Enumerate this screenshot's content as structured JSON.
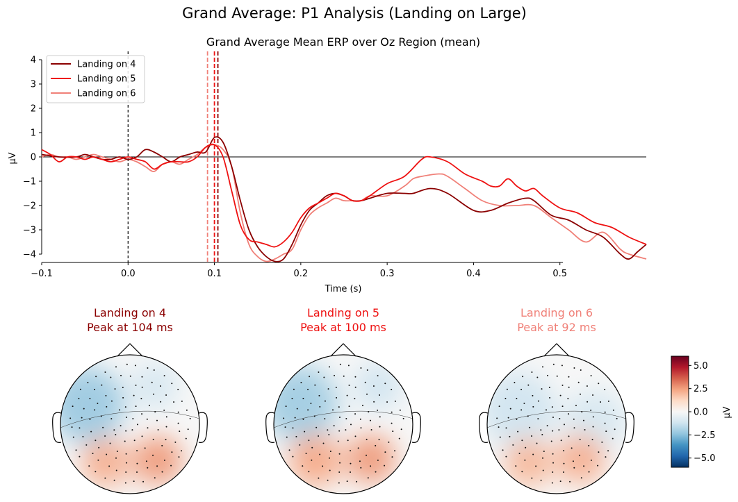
{
  "figure": {
    "suptitle": "Grand Average: P1 Analysis (Landing on Large)"
  },
  "colors": {
    "landing4": "#8b0000",
    "landing5": "#ee1111",
    "landing6": "#f08078",
    "zero_line": "#000000"
  },
  "chart_data": [
    {
      "type": "line",
      "title": "Grand Average Mean ERP over Oz Region (mean)",
      "xlabel": "Time (s)",
      "ylabel": "µV",
      "xlim": [
        -0.1,
        0.6
      ],
      "ylim": [
        -4.3,
        4.3
      ],
      "x_ticks": [
        -0.1,
        0.0,
        0.1,
        0.2,
        0.3,
        0.4,
        0.5
      ],
      "x_tick_labels": [
        "−0.1",
        "0.0",
        "0.1",
        "0.2",
        "0.3",
        "0.4",
        "0.5"
      ],
      "y_ticks": [
        -4,
        -3,
        -2,
        -1,
        0,
        1,
        2,
        3,
        4
      ],
      "y_tick_labels": [
        "−4",
        "−3",
        "−2",
        "−1",
        "0",
        "1",
        "2",
        "3",
        "4"
      ],
      "legend_position": "upper-left",
      "series": [
        {
          "name": "Landing on 4",
          "color_key": "landing4",
          "peak_time": 0.104,
          "points": [
            [
              -0.1,
              0.1
            ],
            [
              -0.08,
              0.0
            ],
            [
              -0.06,
              0.0
            ],
            [
              -0.05,
              0.1
            ],
            [
              -0.04,
              0.0
            ],
            [
              -0.03,
              -0.1
            ],
            [
              -0.02,
              -0.1
            ],
            [
              -0.01,
              0.0
            ],
            [
              0.0,
              -0.1
            ],
            [
              0.01,
              0.0
            ],
            [
              0.02,
              0.3
            ],
            [
              0.03,
              0.2
            ],
            [
              0.04,
              0.0
            ],
            [
              0.05,
              -0.2
            ],
            [
              0.06,
              0.0
            ],
            [
              0.07,
              0.1
            ],
            [
              0.08,
              0.2
            ],
            [
              0.09,
              0.2
            ],
            [
              0.1,
              0.8
            ],
            [
              0.11,
              0.6
            ],
            [
              0.12,
              -0.4
            ],
            [
              0.13,
              -1.8
            ],
            [
              0.14,
              -3.0
            ],
            [
              0.15,
              -3.7
            ],
            [
              0.16,
              -4.1
            ],
            [
              0.17,
              -4.3
            ],
            [
              0.18,
              -4.2
            ],
            [
              0.19,
              -3.6
            ],
            [
              0.2,
              -2.8
            ],
            [
              0.21,
              -2.2
            ],
            [
              0.22,
              -1.9
            ],
            [
              0.23,
              -1.6
            ],
            [
              0.24,
              -1.5
            ],
            [
              0.25,
              -1.6
            ],
            [
              0.26,
              -1.8
            ],
            [
              0.27,
              -1.8
            ],
            [
              0.28,
              -1.7
            ],
            [
              0.3,
              -1.5
            ],
            [
              0.32,
              -1.5
            ],
            [
              0.33,
              -1.5
            ],
            [
              0.35,
              -1.3
            ],
            [
              0.37,
              -1.5
            ],
            [
              0.4,
              -2.2
            ],
            [
              0.42,
              -2.2
            ],
            [
              0.44,
              -1.9
            ],
            [
              0.46,
              -1.7
            ],
            [
              0.47,
              -1.8
            ],
            [
              0.49,
              -2.4
            ],
            [
              0.51,
              -2.6
            ],
            [
              0.53,
              -3.0
            ],
            [
              0.55,
              -3.3
            ],
            [
              0.57,
              -4.0
            ],
            [
              0.58,
              -4.2
            ],
            [
              0.59,
              -3.9
            ],
            [
              0.6,
              -3.6
            ]
          ]
        },
        {
          "name": "Landing on 5",
          "color_key": "landing5",
          "peak_time": 0.1,
          "points": [
            [
              -0.1,
              0.3
            ],
            [
              -0.09,
              0.1
            ],
            [
              -0.08,
              -0.2
            ],
            [
              -0.07,
              0.0
            ],
            [
              -0.06,
              0.0
            ],
            [
              -0.05,
              -0.1
            ],
            [
              -0.04,
              0.0
            ],
            [
              -0.03,
              -0.1
            ],
            [
              -0.02,
              -0.2
            ],
            [
              -0.01,
              -0.1
            ],
            [
              0.0,
              0.0
            ],
            [
              0.01,
              -0.1
            ],
            [
              0.02,
              -0.2
            ],
            [
              0.03,
              -0.5
            ],
            [
              0.04,
              -0.3
            ],
            [
              0.05,
              -0.2
            ],
            [
              0.06,
              -0.2
            ],
            [
              0.07,
              -0.2
            ],
            [
              0.08,
              0.0
            ],
            [
              0.09,
              0.4
            ],
            [
              0.1,
              0.5
            ],
            [
              0.11,
              0.0
            ],
            [
              0.12,
              -1.4
            ],
            [
              0.13,
              -2.8
            ],
            [
              0.14,
              -3.4
            ],
            [
              0.15,
              -3.5
            ],
            [
              0.16,
              -3.6
            ],
            [
              0.17,
              -3.7
            ],
            [
              0.18,
              -3.5
            ],
            [
              0.19,
              -3.1
            ],
            [
              0.2,
              -2.5
            ],
            [
              0.21,
              -2.1
            ],
            [
              0.22,
              -1.9
            ],
            [
              0.23,
              -1.7
            ],
            [
              0.24,
              -1.5
            ],
            [
              0.25,
              -1.6
            ],
            [
              0.26,
              -1.8
            ],
            [
              0.27,
              -1.8
            ],
            [
              0.28,
              -1.6
            ],
            [
              0.3,
              -1.1
            ],
            [
              0.32,
              -0.8
            ],
            [
              0.34,
              -0.1
            ],
            [
              0.35,
              0.0
            ],
            [
              0.37,
              -0.2
            ],
            [
              0.39,
              -0.7
            ],
            [
              0.41,
              -1.0
            ],
            [
              0.42,
              -1.2
            ],
            [
              0.43,
              -1.2
            ],
            [
              0.44,
              -0.9
            ],
            [
              0.45,
              -1.2
            ],
            [
              0.46,
              -1.4
            ],
            [
              0.47,
              -1.3
            ],
            [
              0.48,
              -1.6
            ],
            [
              0.5,
              -2.1
            ],
            [
              0.52,
              -2.3
            ],
            [
              0.54,
              -2.7
            ],
            [
              0.56,
              -2.9
            ],
            [
              0.58,
              -3.3
            ],
            [
              0.6,
              -3.6
            ]
          ]
        },
        {
          "name": "Landing on 6",
          "color_key": "landing6",
          "peak_time": 0.092,
          "points": [
            [
              -0.1,
              0.0
            ],
            [
              -0.09,
              0.1
            ],
            [
              -0.08,
              0.0
            ],
            [
              -0.07,
              0.0
            ],
            [
              -0.06,
              -0.1
            ],
            [
              -0.05,
              0.0
            ],
            [
              -0.04,
              0.1
            ],
            [
              -0.03,
              0.0
            ],
            [
              -0.02,
              -0.1
            ],
            [
              -0.01,
              -0.2
            ],
            [
              0.0,
              -0.1
            ],
            [
              0.01,
              -0.2
            ],
            [
              0.02,
              -0.4
            ],
            [
              0.03,
              -0.6
            ],
            [
              0.04,
              -0.3
            ],
            [
              0.05,
              -0.2
            ],
            [
              0.06,
              -0.3
            ],
            [
              0.07,
              -0.1
            ],
            [
              0.08,
              0.1
            ],
            [
              0.09,
              0.4
            ],
            [
              0.1,
              0.5
            ],
            [
              0.11,
              0.3
            ],
            [
              0.12,
              -0.4
            ],
            [
              0.13,
              -2.3
            ],
            [
              0.14,
              -3.6
            ],
            [
              0.15,
              -4.1
            ],
            [
              0.16,
              -4.3
            ],
            [
              0.17,
              -4.2
            ],
            [
              0.18,
              -4.0
            ],
            [
              0.19,
              -3.8
            ],
            [
              0.2,
              -3.0
            ],
            [
              0.21,
              -2.4
            ],
            [
              0.22,
              -2.1
            ],
            [
              0.23,
              -1.9
            ],
            [
              0.24,
              -1.7
            ],
            [
              0.25,
              -1.8
            ],
            [
              0.26,
              -1.8
            ],
            [
              0.27,
              -1.8
            ],
            [
              0.28,
              -1.6
            ],
            [
              0.3,
              -1.6
            ],
            [
              0.32,
              -1.2
            ],
            [
              0.33,
              -0.9
            ],
            [
              0.34,
              -0.8
            ],
            [
              0.36,
              -0.7
            ],
            [
              0.37,
              -0.8
            ],
            [
              0.39,
              -1.3
            ],
            [
              0.41,
              -1.8
            ],
            [
              0.43,
              -2.0
            ],
            [
              0.45,
              -2.0
            ],
            [
              0.47,
              -2.0
            ],
            [
              0.49,
              -2.5
            ],
            [
              0.51,
              -3.0
            ],
            [
              0.53,
              -3.5
            ],
            [
              0.55,
              -3.1
            ],
            [
              0.57,
              -3.8
            ],
            [
              0.58,
              -4.0
            ],
            [
              0.6,
              -4.2
            ]
          ]
        }
      ]
    },
    {
      "type": "heatmap",
      "subtype": "scalp-topomap",
      "colorbar": {
        "label": "µV",
        "vmin": -6,
        "vmax": 6,
        "ticks": [
          5.0,
          2.5,
          0.0,
          -2.5,
          -5.0
        ],
        "tick_labels": [
          "5.0",
          "2.5",
          "0.0",
          "−2.5",
          "−5.0"
        ],
        "colormap": "RdBu_r",
        "stops": [
          "#053061",
          "#2166ac",
          "#4393c3",
          "#92c5de",
          "#d1e5f0",
          "#f7f7f7",
          "#fddbc7",
          "#f4a582",
          "#d6604d",
          "#b2182b",
          "#67001f"
        ]
      },
      "maps": [
        {
          "title_line1": "Landing on 4",
          "title_line2": "Peak at 104 ms",
          "color_key": "landing4",
          "blobs": [
            {
              "x": -0.62,
              "y": -0.28,
              "r": 0.55,
              "v": -2.2
            },
            {
              "x": 0.35,
              "y": -0.55,
              "r": 0.35,
              "v": -1.0
            },
            {
              "x": -0.35,
              "y": 0.55,
              "r": 0.35,
              "v": 2.2
            },
            {
              "x": 0.4,
              "y": 0.52,
              "r": 0.35,
              "v": 2.6
            }
          ]
        },
        {
          "title_line1": "Landing on 5",
          "title_line2": "Peak at 100 ms",
          "color_key": "landing5",
          "blobs": [
            {
              "x": -0.62,
              "y": -0.3,
              "r": 0.55,
              "v": -2.1
            },
            {
              "x": 0.5,
              "y": -0.55,
              "r": 0.35,
              "v": -1.2
            },
            {
              "x": -0.4,
              "y": 0.52,
              "r": 0.38,
              "v": 2.3
            },
            {
              "x": 0.4,
              "y": 0.5,
              "r": 0.35,
              "v": 2.6
            }
          ]
        },
        {
          "title_line1": "Landing on 6",
          "title_line2": "Peak at 92 ms",
          "color_key": "landing6",
          "blobs": [
            {
              "x": -0.55,
              "y": -0.2,
              "r": 0.55,
              "v": -1.2
            },
            {
              "x": 0.55,
              "y": -0.05,
              "r": 0.45,
              "v": -1.0
            },
            {
              "x": -0.4,
              "y": 0.55,
              "r": 0.35,
              "v": 2.0
            },
            {
              "x": 0.35,
              "y": 0.5,
              "r": 0.35,
              "v": 2.2
            }
          ]
        }
      ]
    }
  ]
}
